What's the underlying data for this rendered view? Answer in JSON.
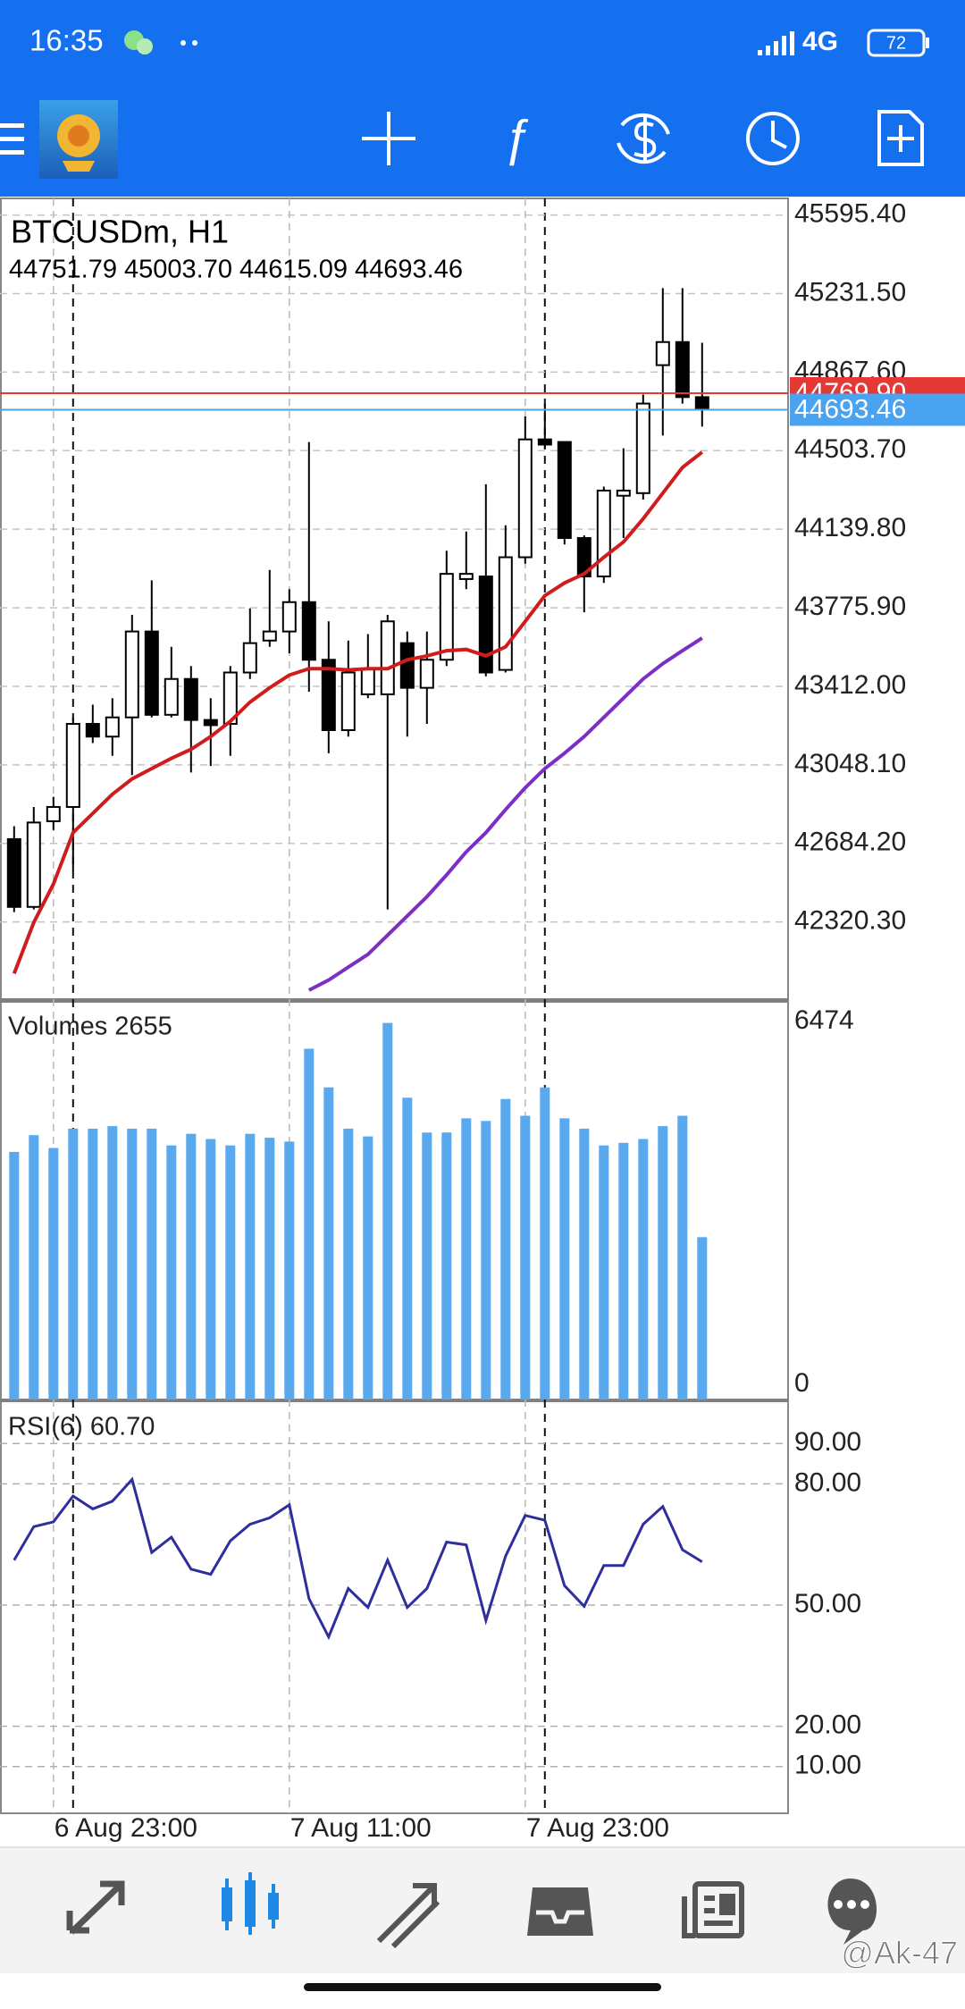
{
  "status_bar": {
    "time": "16:35",
    "network": "4G",
    "battery": "72"
  },
  "chart_data": [
    {
      "type": "candlestick",
      "title": "BTCUSDm, H1",
      "subtitle": "44751.79 45003.70 44615.09 44693.46",
      "categories": [
        null,
        null,
        "6 Aug 23:00",
        null,
        null,
        null,
        null,
        null,
        null,
        null,
        null,
        null,
        null,
        null,
        "7 Aug 11:00",
        null,
        null,
        null,
        null,
        null,
        null,
        null,
        null,
        null,
        null,
        null,
        "7 Aug 23:00",
        null,
        null,
        null,
        null,
        null,
        null,
        null,
        null,
        null
      ],
      "open": [
        42704,
        42390,
        42787,
        42853,
        43238,
        43179,
        43268,
        43666,
        43280,
        43446,
        43256,
        43238,
        43476,
        43624,
        43666,
        43802,
        43535,
        43209,
        43375,
        43375,
        43612,
        43405,
        43535,
        43909,
        43921,
        43488,
        44010,
        44556,
        44544,
        44099,
        43921,
        44295,
        44307,
        44900,
        45007,
        44751.79
      ],
      "high": [
        42764,
        42853,
        42900,
        43268,
        43327,
        43357,
        43743,
        43903,
        43595,
        43506,
        43357,
        43506,
        43773,
        43951,
        43862,
        44544,
        43713,
        43624,
        43654,
        43743,
        43666,
        43666,
        44040,
        44129,
        44348,
        44158,
        44663,
        44722,
        44544,
        44111,
        44337,
        44515,
        44764,
        45257,
        45257,
        45003.7
      ],
      "low": [
        42366,
        42378,
        42746,
        42556,
        43149,
        43090,
        43001,
        43268,
        43268,
        43013,
        43043,
        43090,
        43446,
        43595,
        43565,
        43387,
        43102,
        43179,
        43357,
        42378,
        43179,
        43238,
        43506,
        43862,
        43458,
        43476,
        43980,
        44515,
        44069,
        43755,
        43891,
        44099,
        44277,
        44574,
        44722,
        44615.09
      ],
      "close": [
        42390,
        42781,
        42853,
        43238,
        43179,
        43268,
        43666,
        43280,
        43446,
        43256,
        43232,
        43476,
        43612,
        43666,
        43802,
        43535,
        43209,
        43476,
        43494,
        43713,
        43405,
        43535,
        43933,
        43933,
        43476,
        44010,
        44556,
        44532,
        44099,
        43921,
        44319,
        44319,
        44722,
        45007,
        44752,
        44693.46
      ],
      "up_color": "#ffffff",
      "down_color": "#000000",
      "series": [
        {
          "color": "#d01c1c",
          "values": [
            42081,
            42318,
            42496,
            42734,
            42823,
            42912,
            42983,
            43031,
            43078,
            43120,
            43179,
            43250,
            43339,
            43405,
            43464,
            43494,
            43494,
            43488,
            43494,
            43494,
            43535,
            43553,
            43577,
            43583,
            43553,
            43595,
            43713,
            43832,
            43891,
            43933,
            44010,
            44081,
            44188,
            44307,
            44426,
            44497
          ]
        },
        {
          "color": "#7b2fc4",
          "values": [
            null,
            null,
            null,
            null,
            null,
            null,
            null,
            null,
            null,
            null,
            null,
            null,
            null,
            null,
            null,
            42004,
            42051,
            42111,
            42170,
            42259,
            42348,
            42437,
            42538,
            42645,
            42734,
            42841,
            42942,
            43031,
            43102,
            43179,
            43268,
            43357,
            43446,
            43517,
            43577,
            43636
          ]
        }
      ],
      "price_lines": [
        {
          "value": 44769.9,
          "label": "44769.90",
          "color": "#e53935"
        },
        {
          "value": 44693.46,
          "label": "44693.46",
          "color": "#4aa3f0"
        }
      ],
      "ylim": [
        41962.6,
        45672.6
      ],
      "yticks": [
        {
          "value": 45595.4,
          "label": "45595.40"
        },
        {
          "value": 45231.5,
          "label": "45231.50"
        },
        {
          "value": 44867.6,
          "label": "44867.60"
        },
        {
          "value": 44503.7,
          "label": "44503.70"
        },
        {
          "value": 44139.8,
          "label": "44139.80"
        },
        {
          "value": 43775.9,
          "label": "43775.90"
        },
        {
          "value": 43412.0,
          "label": "43412.00"
        },
        {
          "value": 43048.1,
          "label": "43048.10"
        },
        {
          "value": 42684.2,
          "label": "42684.20"
        },
        {
          "value": 42320.3,
          "label": "42320.30"
        }
      ],
      "grid": true
    },
    {
      "type": "bar",
      "title": "Volumes 2655",
      "color": "#5aa9ee",
      "values": [
        4049,
        4323,
        4113,
        4429,
        4429,
        4471,
        4429,
        4429,
        4155,
        4345,
        4260,
        4155,
        4345,
        4281,
        4218,
        5736,
        5104,
        4429,
        4302,
        6158,
        4935,
        4366,
        4366,
        4598,
        4555,
        4914,
        4640,
        5104,
        4598,
        4429,
        4155,
        4197,
        4260,
        4471,
        4640,
        2655
      ],
      "ylim": [
        0,
        6474
      ],
      "yticks": [
        6474,
        0
      ]
    },
    {
      "type": "line",
      "title": "RSI(6) 60.70",
      "color": "#2e2e9e",
      "values": [
        61.1,
        69.4,
        70.6,
        77.0,
        73.8,
        75.7,
        81.1,
        63.0,
        66.8,
        58.9,
        57.6,
        65.9,
        70.0,
        71.6,
        74.8,
        51.6,
        42.1,
        54.1,
        49.4,
        61.1,
        49.4,
        54.1,
        65.6,
        64.9,
        46.2,
        62.1,
        72.2,
        71.0,
        54.8,
        49.7,
        59.8,
        59.8,
        70.0,
        74.4,
        63.7,
        60.7
      ],
      "ylim": [
        0,
        100
      ],
      "yticks": [
        {
          "value": 90,
          "label": "90.00"
        },
        {
          "value": 80,
          "label": "80.00"
        },
        {
          "value": 50,
          "label": "50.00"
        },
        {
          "value": 20,
          "label": "20.00"
        },
        {
          "value": 10,
          "label": "10.00"
        }
      ],
      "grid": true
    }
  ],
  "watermark": "@Ak-47"
}
